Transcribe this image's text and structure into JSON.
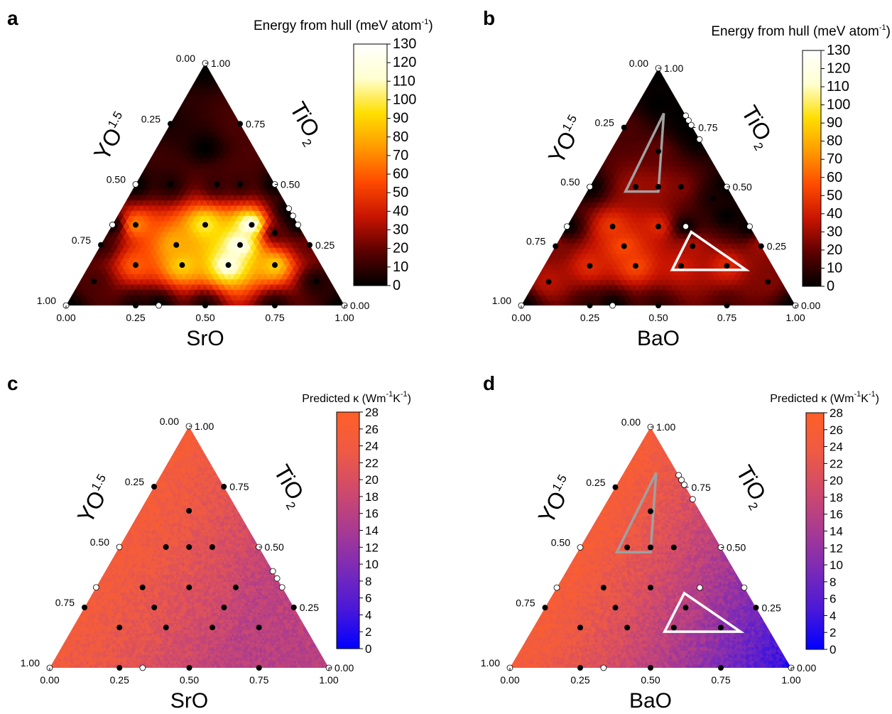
{
  "chart_data": [
    {
      "type": "heatmap",
      "panel": "a",
      "xlabel": "SrO",
      "left_label": "YO",
      "left_label_sub": "1.5",
      "right_label": "TiO",
      "right_label_sub": "2",
      "colorbar": {
        "title": "Energy from hull (meV atom",
        "title_sup": "-1",
        "title_end": ")",
        "min": 0,
        "max": 130,
        "ticks": [
          "0",
          "10",
          "20",
          "30",
          "40",
          "50",
          "60",
          "70",
          "80",
          "90",
          "100",
          "110",
          "120",
          "130"
        ],
        "colors": [
          "#000000",
          "#5c0000",
          "#c81400",
          "#ff4a00",
          "#ff9a00",
          "#ffdf00",
          "#ffffd0",
          "#ffffff"
        ]
      },
      "tick_labels": {
        "bottom": [
          "0.00",
          "0.25",
          "0.50",
          "0.75",
          "1.00"
        ],
        "left": [
          "1.00",
          "0.75",
          "0.50",
          "0.25",
          "0.00"
        ],
        "right": [
          "0.00",
          "0.25",
          "0.50",
          "0.75",
          "1.00"
        ]
      },
      "points": [
        {
          "x": 0.5,
          "y": 0.65,
          "e": 0,
          "stable": false
        },
        {
          "x": 0.375,
          "y": 0.5,
          "e": 5,
          "stable": false
        },
        {
          "x": 0.542,
          "y": 0.5,
          "e": 10,
          "stable": false
        },
        {
          "x": 0.625,
          "y": 0.5,
          "e": 10,
          "stable": false
        },
        {
          "x": 0.25,
          "y": 0.333,
          "e": 70,
          "stable": false
        },
        {
          "x": 0.5,
          "y": 0.333,
          "e": 100,
          "stable": false
        },
        {
          "x": 0.667,
          "y": 0.333,
          "e": 130,
          "stable": false
        },
        {
          "x": 0.396,
          "y": 0.25,
          "e": 80,
          "stable": false
        },
        {
          "x": 0.625,
          "y": 0.25,
          "e": 125,
          "stable": false
        },
        {
          "x": 0.25,
          "y": 0.167,
          "e": 60,
          "stable": false
        },
        {
          "x": 0.417,
          "y": 0.167,
          "e": 90,
          "stable": false
        },
        {
          "x": 0.583,
          "y": 0.167,
          "e": 120,
          "stable": false
        },
        {
          "x": 0.75,
          "y": 0.167,
          "e": 90,
          "stable": false
        },
        {
          "x": 0.125,
          "y": 0.25,
          "e": 10,
          "stable": false
        },
        {
          "x": 0.875,
          "y": 0.25,
          "e": 20,
          "stable": false
        },
        {
          "x": 0.375,
          "y": 0.75,
          "e": 5,
          "stable": false
        },
        {
          "x": 0.625,
          "y": 0.75,
          "e": 15,
          "stable": false
        },
        {
          "x": 0.25,
          "y": 0.0,
          "e": 5,
          "stable": false
        },
        {
          "x": 0.5,
          "y": 0.0,
          "e": 5,
          "stable": false
        },
        {
          "x": 0.75,
          "y": 0.0,
          "e": 5,
          "stable": false
        },
        {
          "x": 0.0,
          "y": 0.0,
          "e": 0,
          "stable": true
        },
        {
          "x": 0.5,
          "y": 1.0,
          "e": 0,
          "stable": true
        },
        {
          "x": 1.0,
          "y": 0.0,
          "e": 0,
          "stable": true
        },
        {
          "x": 0.333,
          "y": 0.0,
          "e": 0,
          "stable": true
        },
        {
          "x": 0.1667,
          "y": 0.333,
          "e": 0,
          "stable": true
        },
        {
          "x": 0.25,
          "y": 0.5,
          "e": 0,
          "stable": true
        },
        {
          "x": 0.75,
          "y": 0.5,
          "e": 0,
          "stable": true
        },
        {
          "x": 0.8,
          "y": 0.4,
          "e": 0,
          "stable": true
        },
        {
          "x": 0.815,
          "y": 0.37,
          "e": 0,
          "stable": true
        },
        {
          "x": 0.833,
          "y": 0.333,
          "e": 0,
          "stable": true
        },
        {
          "x": 0.75,
          "y": 0.3,
          "e": 15,
          "stable": false
        },
        {
          "x": 0.1,
          "y": 0.1,
          "e": 15,
          "stable": false
        },
        {
          "x": 0.9,
          "y": 0.1,
          "e": 5,
          "stable": false
        }
      ],
      "triangles": []
    },
    {
      "type": "heatmap",
      "panel": "b",
      "xlabel": "BaO",
      "left_label": "YO",
      "left_label_sub": "1.5",
      "right_label": "TiO",
      "right_label_sub": "2",
      "colorbar": {
        "title": "Energy from hull (meV atom",
        "title_sup": "-1",
        "title_end": ")",
        "min": 0,
        "max": 130,
        "ticks": [
          "0",
          "10",
          "20",
          "30",
          "40",
          "50",
          "60",
          "70",
          "80",
          "90",
          "100",
          "110",
          "120",
          "130"
        ],
        "colors": [
          "#000000",
          "#5c0000",
          "#c81400",
          "#ff4a00",
          "#ff9a00",
          "#ffdf00",
          "#ffffd0",
          "#ffffff"
        ]
      },
      "tick_labels": {
        "bottom": [
          "0.00",
          "0.25",
          "0.50",
          "0.75",
          "1.00"
        ],
        "left": [
          "1.00",
          "0.75",
          "0.50",
          "0.25",
          "0.00"
        ],
        "right": [
          "0.00",
          "0.25",
          "0.50",
          "0.75",
          "1.00"
        ]
      },
      "points": [
        {
          "x": 0.5,
          "y": 0.85,
          "e": 0,
          "stable": false
        },
        {
          "x": 0.375,
          "y": 0.75,
          "e": 15,
          "stable": false
        },
        {
          "x": 0.5,
          "y": 0.65,
          "e": 20,
          "stable": false
        },
        {
          "x": 0.417,
          "y": 0.5,
          "e": 30,
          "stable": false
        },
        {
          "x": 0.5,
          "y": 0.5,
          "e": 30,
          "stable": false
        },
        {
          "x": 0.583,
          "y": 0.5,
          "e": 25,
          "stable": false
        },
        {
          "x": 0.333,
          "y": 0.333,
          "e": 50,
          "stable": false
        },
        {
          "x": 0.5,
          "y": 0.333,
          "e": 45,
          "stable": false
        },
        {
          "x": 0.375,
          "y": 0.25,
          "e": 55,
          "stable": false
        },
        {
          "x": 0.25,
          "y": 0.167,
          "e": 45,
          "stable": false
        },
        {
          "x": 0.417,
          "y": 0.167,
          "e": 55,
          "stable": false
        },
        {
          "x": 0.625,
          "y": 0.25,
          "e": 35,
          "stable": false
        },
        {
          "x": 0.583,
          "y": 0.167,
          "e": 40,
          "stable": false
        },
        {
          "x": 0.75,
          "y": 0.167,
          "e": 45,
          "stable": false
        },
        {
          "x": 0.125,
          "y": 0.25,
          "e": 25,
          "stable": false
        },
        {
          "x": 0.875,
          "y": 0.25,
          "e": 30,
          "stable": false
        },
        {
          "x": 0.75,
          "y": 0.38,
          "e": 0,
          "stable": false
        },
        {
          "x": 0.7,
          "y": 0.45,
          "e": 5,
          "stable": false
        },
        {
          "x": 0.25,
          "y": 0.0,
          "e": 10,
          "stable": false
        },
        {
          "x": 0.5,
          "y": 0.0,
          "e": 10,
          "stable": false
        },
        {
          "x": 0.75,
          "y": 0.0,
          "e": 15,
          "stable": false
        },
        {
          "x": 0.0,
          "y": 0.0,
          "e": 0,
          "stable": true
        },
        {
          "x": 0.5,
          "y": 1.0,
          "e": 0,
          "stable": true
        },
        {
          "x": 1.0,
          "y": 0.0,
          "e": 0,
          "stable": true
        },
        {
          "x": 0.333,
          "y": 0.0,
          "e": 0,
          "stable": true
        },
        {
          "x": 0.1667,
          "y": 0.333,
          "e": 0,
          "stable": true
        },
        {
          "x": 0.25,
          "y": 0.5,
          "e": 0,
          "stable": true
        },
        {
          "x": 0.75,
          "y": 0.5,
          "e": 0,
          "stable": true
        },
        {
          "x": 0.6,
          "y": 0.8,
          "e": 0,
          "stable": true
        },
        {
          "x": 0.61,
          "y": 0.78,
          "e": 0,
          "stable": true
        },
        {
          "x": 0.62,
          "y": 0.76,
          "e": 0,
          "stable": true
        },
        {
          "x": 0.65,
          "y": 0.7,
          "e": 0,
          "stable": true
        },
        {
          "x": 0.833,
          "y": 0.333,
          "e": 0,
          "stable": true
        },
        {
          "x": 0.6,
          "y": 0.333,
          "e": 0,
          "stable": true
        },
        {
          "x": 0.1,
          "y": 0.1,
          "e": 35,
          "stable": false
        },
        {
          "x": 0.9,
          "y": 0.1,
          "e": 25,
          "stable": false
        }
      ],
      "triangles": [
        {
          "color": "#a0a0a0",
          "vertices": [
            [
              0.38,
              0.48
            ],
            [
              0.52,
              0.81
            ],
            [
              0.5,
              0.48
            ]
          ]
        },
        {
          "color": "#ffffff",
          "vertices": [
            [
              0.55,
              0.15
            ],
            [
              0.62,
              0.31
            ],
            [
              0.82,
              0.15
            ]
          ]
        }
      ]
    },
    {
      "type": "heatmap",
      "panel": "c",
      "xlabel": "SrO",
      "left_label": "YO",
      "left_label_sub": "1.5",
      "right_label": "TiO",
      "right_label_sub": "2",
      "colorbar": {
        "title": "Predicted κ (Wm",
        "title_sup": "-1",
        "title_mid": "K",
        "title_sup2": "-1",
        "title_end": ")",
        "min": 0,
        "max": 28,
        "ticks": [
          "0",
          "2",
          "4",
          "6",
          "8",
          "10",
          "12",
          "14",
          "16",
          "18",
          "20",
          "22",
          "24",
          "26",
          "28"
        ],
        "colors": [
          "#0000ff",
          "#4a18d8",
          "#7a2ab8",
          "#a83a92",
          "#cf4a6c",
          "#ee5a44",
          "#ff5f28"
        ]
      },
      "tick_labels": {
        "bottom": [
          "0.00",
          "0.25",
          "0.50",
          "0.75",
          "1.00"
        ],
        "left": [
          "1.00",
          "0.75",
          "0.50",
          "0.25",
          "0.00"
        ],
        "right": [
          "0.00",
          "0.25",
          "0.50",
          "0.75",
          "1.00"
        ]
      },
      "gradient": {
        "kappa_max": 24,
        "kappa_min": 13,
        "center_x": 0.65,
        "spread": 0.75
      },
      "points": [
        {
          "x": 0.375,
          "y": 0.75,
          "stable": false
        },
        {
          "x": 0.625,
          "y": 0.75,
          "stable": false
        },
        {
          "x": 0.5,
          "y": 0.65,
          "stable": false
        },
        {
          "x": 0.417,
          "y": 0.5,
          "stable": false
        },
        {
          "x": 0.5,
          "y": 0.5,
          "stable": false
        },
        {
          "x": 0.583,
          "y": 0.5,
          "stable": false
        },
        {
          "x": 0.333,
          "y": 0.333,
          "stable": false
        },
        {
          "x": 0.5,
          "y": 0.333,
          "stable": false
        },
        {
          "x": 0.667,
          "y": 0.333,
          "stable": false
        },
        {
          "x": 0.125,
          "y": 0.25,
          "stable": false
        },
        {
          "x": 0.375,
          "y": 0.25,
          "stable": false
        },
        {
          "x": 0.625,
          "y": 0.25,
          "stable": false
        },
        {
          "x": 0.875,
          "y": 0.25,
          "stable": false
        },
        {
          "x": 0.25,
          "y": 0.167,
          "stable": false
        },
        {
          "x": 0.417,
          "y": 0.167,
          "stable": false
        },
        {
          "x": 0.583,
          "y": 0.167,
          "stable": false
        },
        {
          "x": 0.75,
          "y": 0.167,
          "stable": false
        },
        {
          "x": 0.25,
          "y": 0.0,
          "stable": false
        },
        {
          "x": 0.5,
          "y": 0.0,
          "stable": false
        },
        {
          "x": 0.75,
          "y": 0.0,
          "stable": false
        },
        {
          "x": 0.0,
          "y": 0.0,
          "stable": true
        },
        {
          "x": 0.5,
          "y": 1.0,
          "stable": true
        },
        {
          "x": 1.0,
          "y": 0.0,
          "stable": true
        },
        {
          "x": 0.333,
          "y": 0.0,
          "stable": true
        },
        {
          "x": 0.1667,
          "y": 0.333,
          "stable": true
        },
        {
          "x": 0.25,
          "y": 0.5,
          "stable": true
        },
        {
          "x": 0.75,
          "y": 0.5,
          "stable": true
        },
        {
          "x": 0.8,
          "y": 0.4,
          "stable": true
        },
        {
          "x": 0.815,
          "y": 0.37,
          "stable": true
        },
        {
          "x": 0.833,
          "y": 0.333,
          "stable": true
        }
      ],
      "triangles": []
    },
    {
      "type": "heatmap",
      "panel": "d",
      "xlabel": "BaO",
      "left_label": "YO",
      "left_label_sub": "1.5",
      "right_label": "TiO",
      "right_label_sub": "2",
      "colorbar": {
        "title": "Predicted κ (Wm",
        "title_sup": "-1",
        "title_mid": "K",
        "title_sup2": "-1",
        "title_end": ")",
        "min": 0,
        "max": 28,
        "ticks": [
          "0",
          "2",
          "4",
          "6",
          "8",
          "10",
          "12",
          "14",
          "16",
          "18",
          "20",
          "22",
          "24",
          "26",
          "28"
        ],
        "colors": [
          "#0000ff",
          "#4a18d8",
          "#7a2ab8",
          "#a83a92",
          "#cf4a6c",
          "#ee5a44",
          "#ff5f28"
        ]
      },
      "tick_labels": {
        "bottom": [
          "0.00",
          "0.25",
          "0.50",
          "0.75",
          "1.00"
        ],
        "left": [
          "1.00",
          "0.75",
          "0.50",
          "0.25",
          "0.00"
        ],
        "right": [
          "0.00",
          "0.25",
          "0.50",
          "0.75",
          "1.00"
        ]
      },
      "gradient": {
        "kappa_max": 25,
        "kappa_min": 2,
        "center_x": 1.0,
        "spread": 1.0
      },
      "points": [
        {
          "x": 0.375,
          "y": 0.75,
          "stable": false
        },
        {
          "x": 0.5,
          "y": 0.65,
          "stable": false
        },
        {
          "x": 0.417,
          "y": 0.5,
          "stable": false
        },
        {
          "x": 0.5,
          "y": 0.5,
          "stable": false
        },
        {
          "x": 0.583,
          "y": 0.5,
          "stable": false
        },
        {
          "x": 0.333,
          "y": 0.333,
          "stable": false
        },
        {
          "x": 0.5,
          "y": 0.333,
          "stable": false
        },
        {
          "x": 0.375,
          "y": 0.25,
          "stable": false
        },
        {
          "x": 0.625,
          "y": 0.25,
          "stable": false
        },
        {
          "x": 0.125,
          "y": 0.25,
          "stable": false
        },
        {
          "x": 0.875,
          "y": 0.25,
          "stable": false
        },
        {
          "x": 0.25,
          "y": 0.167,
          "stable": false
        },
        {
          "x": 0.417,
          "y": 0.167,
          "stable": false
        },
        {
          "x": 0.583,
          "y": 0.167,
          "stable": false
        },
        {
          "x": 0.75,
          "y": 0.167,
          "stable": false
        },
        {
          "x": 0.25,
          "y": 0.0,
          "stable": false
        },
        {
          "x": 0.5,
          "y": 0.0,
          "stable": false
        },
        {
          "x": 0.75,
          "y": 0.0,
          "stable": false
        },
        {
          "x": 0.0,
          "y": 0.0,
          "stable": true
        },
        {
          "x": 0.5,
          "y": 1.0,
          "stable": true
        },
        {
          "x": 1.0,
          "y": 0.0,
          "stable": true
        },
        {
          "x": 0.333,
          "y": 0.0,
          "stable": true
        },
        {
          "x": 0.1667,
          "y": 0.333,
          "stable": true
        },
        {
          "x": 0.25,
          "y": 0.5,
          "stable": true
        },
        {
          "x": 0.75,
          "y": 0.5,
          "stable": true
        },
        {
          "x": 0.6,
          "y": 0.8,
          "stable": true
        },
        {
          "x": 0.61,
          "y": 0.78,
          "stable": true
        },
        {
          "x": 0.62,
          "y": 0.76,
          "stable": true
        },
        {
          "x": 0.65,
          "y": 0.7,
          "stable": true
        },
        {
          "x": 0.833,
          "y": 0.333,
          "stable": true
        },
        {
          "x": 0.675,
          "y": 0.333,
          "stable": true
        }
      ],
      "triangles": [
        {
          "color": "#a0a0a0",
          "vertices": [
            [
              0.38,
              0.48
            ],
            [
              0.52,
              0.81
            ],
            [
              0.5,
              0.48
            ]
          ]
        },
        {
          "color": "#ffffff",
          "vertices": [
            [
              0.55,
              0.15
            ],
            [
              0.62,
              0.31
            ],
            [
              0.82,
              0.15
            ]
          ]
        }
      ]
    }
  ]
}
